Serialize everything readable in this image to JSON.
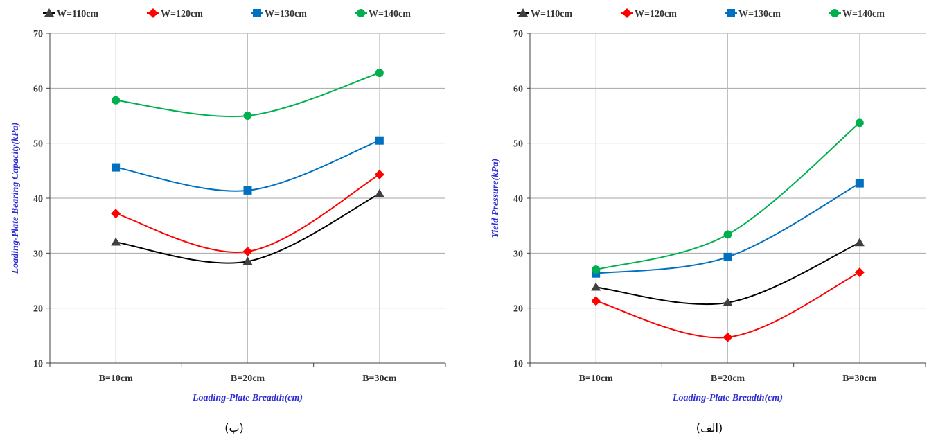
{
  "colors": {
    "W=110cm": "#404040",
    "W=120cm": "#ff0000",
    "W=130cm": "#0070c0",
    "W=140cm": "#00b050"
  },
  "chart_data": [
    {
      "type": "line",
      "caption": "(ب)",
      "categories": [
        "B=10cm",
        "B=20cm",
        "B=30cm"
      ],
      "xlabel": "Loading-Plate Breadth(cm)",
      "ylabel": "Loading-Plate Bearing Capacity(kPa)",
      "ylim": [
        10,
        70
      ],
      "yticks": [
        "10",
        "20",
        "30",
        "40",
        "50",
        "60",
        "70"
      ],
      "grid": true,
      "legend": "top-left",
      "series": [
        {
          "name": "W=110cm",
          "marker": "triangle",
          "line_color": "#000000",
          "values": [
            32.0,
            28.5,
            40.8
          ]
        },
        {
          "name": "W=120cm",
          "marker": "diamond",
          "line_color": "#ff0000",
          "values": [
            37.2,
            30.3,
            44.3
          ]
        },
        {
          "name": "W=130cm",
          "marker": "square",
          "line_color": "#0070c0",
          "values": [
            45.6,
            41.4,
            50.5
          ]
        },
        {
          "name": "W=140cm",
          "marker": "circle",
          "line_color": "#00b050",
          "values": [
            57.8,
            55.0,
            62.8
          ]
        }
      ]
    },
    {
      "type": "line",
      "caption": "(الف)",
      "categories": [
        "B=10cm",
        "B=20cm",
        "B=30cm"
      ],
      "xlabel": "Loading-Plate Breadth(cm)",
      "ylabel": "Yield Pressure(kPa)",
      "ylim": [
        10,
        70
      ],
      "yticks": [
        "10",
        "20",
        "30",
        "40",
        "50",
        "60",
        "70"
      ],
      "grid": true,
      "legend": "top-left",
      "series": [
        {
          "name": "W=110cm",
          "marker": "triangle",
          "line_color": "#000000",
          "values": [
            23.8,
            21.0,
            31.9
          ]
        },
        {
          "name": "W=120cm",
          "marker": "diamond",
          "line_color": "#ff0000",
          "values": [
            21.3,
            14.7,
            26.5
          ]
        },
        {
          "name": "W=130cm",
          "marker": "square",
          "line_color": "#0070c0",
          "values": [
            26.3,
            29.3,
            42.7
          ]
        },
        {
          "name": "W=140cm",
          "marker": "circle",
          "line_color": "#00b050",
          "values": [
            27.0,
            33.4,
            53.7
          ]
        }
      ]
    }
  ]
}
